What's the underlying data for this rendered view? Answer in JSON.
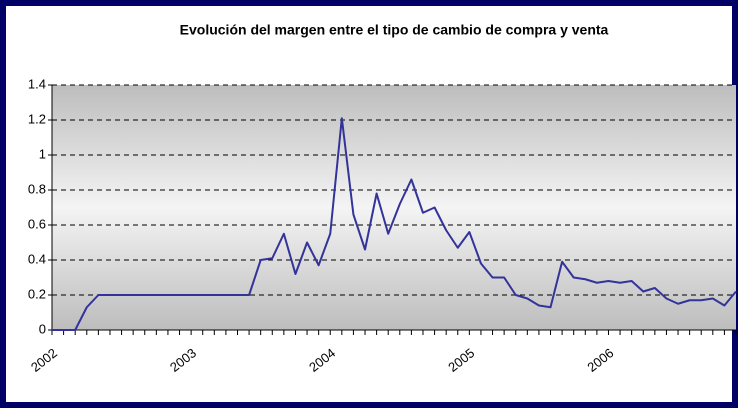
{
  "chart_data": {
    "type": "line",
    "title": "Evolución del margen entre el tipo de cambio de compra y venta",
    "categories": [
      "2002",
      null,
      null,
      null,
      null,
      null,
      null,
      null,
      null,
      null,
      null,
      null,
      "2003",
      null,
      null,
      null,
      null,
      null,
      null,
      null,
      null,
      null,
      null,
      null,
      "2004",
      null,
      null,
      null,
      null,
      null,
      null,
      null,
      null,
      null,
      null,
      null,
      "2005",
      null,
      null,
      null,
      null,
      null,
      null,
      null,
      null,
      null,
      null,
      null,
      "2006",
      null,
      null,
      null,
      null,
      null,
      null,
      null,
      null,
      null,
      null,
      null
    ],
    "values": [
      0,
      0,
      0,
      0.13,
      0.2,
      0.2,
      0.2,
      0.2,
      0.2,
      0.2,
      0.2,
      0.2,
      0.2,
      0.2,
      0.2,
      0.2,
      0.2,
      0.2,
      0.4,
      0.41,
      0.55,
      0.32,
      0.5,
      0.37,
      0.55,
      1.21,
      0.66,
      0.46,
      0.78,
      0.55,
      0.72,
      0.86,
      0.67,
      0.7,
      0.57,
      0.47,
      0.56,
      0.38,
      0.3,
      0.3,
      0.2,
      0.18,
      0.14,
      0.13,
      0.39,
      0.3,
      0.29,
      0.27,
      0.28,
      0.27,
      0.28,
      0.22,
      0.24,
      0.18,
      0.15,
      0.17,
      0.17,
      0.18,
      0.14,
      0.22
    ],
    "color": "#333399",
    "ylim": [
      0,
      1.4
    ],
    "yticks": [
      0,
      0.2,
      0.4,
      0.6,
      0.8,
      1,
      1.2,
      1.4
    ],
    "grid": true
  }
}
